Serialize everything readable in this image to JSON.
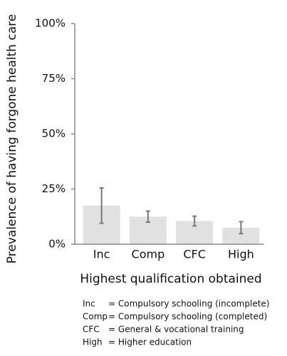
{
  "chart_data": {
    "type": "bar",
    "y_label": "Prevalence of having forgone health care",
    "x_label": "Highest qualification obtained",
    "categories": [
      "Inc",
      "Comp",
      "CFC",
      "High"
    ],
    "values": [
      17.5,
      12.5,
      10.5,
      7.5
    ],
    "errors": [
      8,
      2.5,
      2.2,
      2.7
    ],
    "color": "#e1e1e1",
    "error_color": "#777777",
    "ylim": [
      0,
      100
    ],
    "yticks": [
      {
        "value": 0,
        "label": "0%"
      },
      {
        "value": 25,
        "label": "25%"
      },
      {
        "value": 50,
        "label": "50%"
      },
      {
        "value": 75,
        "label": "75%"
      },
      {
        "value": 100,
        "label": "100%"
      }
    ],
    "grid": false,
    "footnotes": [
      {
        "abbr": "Inc",
        "text": "= Compulsory schooling (incomplete)"
      },
      {
        "abbr": "Comp",
        "text": "= Compulsory schooling (completed)"
      },
      {
        "abbr": "CFC",
        "text": "= General & vocational  training"
      },
      {
        "abbr": "High",
        "text": "=  Higher education"
      }
    ]
  }
}
